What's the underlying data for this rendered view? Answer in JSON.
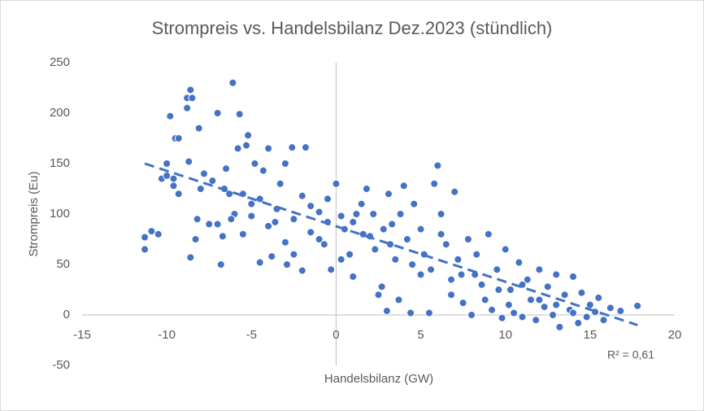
{
  "chart_data": {
    "type": "scatter",
    "title": "Strompreis vs. Handelsbilanz Dez.2023 (stündlich)",
    "x_label": "Handelsbilanz (GW)",
    "y_label": "Strompreis (Eu)",
    "xlim": [
      -15,
      20
    ],
    "xticks": [
      -15,
      -10,
      -5,
      0,
      5,
      10,
      15,
      20
    ],
    "ylim": [
      -50,
      250
    ],
    "yticks": [
      -50,
      0,
      50,
      100,
      150,
      200,
      250
    ],
    "grid": false,
    "series": [
      {
        "color": "#4472c4",
        "x": [
          -11.3,
          -11.3,
          -10.9,
          -10.5,
          -10.3,
          -10,
          -10,
          -9.8,
          -9.6,
          -9.6,
          -9.5,
          -9.3,
          -9.3,
          -8.8,
          -8.8,
          -8.7,
          -8.6,
          -8.5,
          -8.6,
          -8.3,
          -8.2,
          -8.1,
          -8,
          -7.8,
          -7.3,
          -7,
          -7,
          -6.8,
          -6.7,
          -6.5,
          -6.3,
          -6.1,
          -6,
          -5.8,
          -5.7,
          -5.5,
          -5.3,
          -5.2,
          -5,
          -4.8,
          -4.5,
          -4.3,
          -4,
          -3.8,
          -3.6,
          -3.3,
          -3,
          -2.9,
          -2.6,
          -2.5,
          -2,
          -1.8,
          -1.5,
          -1,
          -0.7,
          -0.5,
          -0.3,
          0,
          0.3,
          0.5,
          0.8,
          1,
          1.2,
          1.5,
          1.8,
          2,
          2.3,
          2.5,
          2.7,
          3,
          3.1,
          3.3,
          3.5,
          3.7,
          4,
          4.2,
          4.4,
          4.6,
          5,
          5.2,
          5.5,
          5.8,
          6,
          6.2,
          6.5,
          6.8,
          7,
          7.2,
          7.5,
          7.8,
          8,
          8.3,
          8.6,
          9,
          9.2,
          9.5,
          9.8,
          10,
          10.3,
          10.5,
          10.8,
          11,
          11.3,
          11.5,
          11.8,
          12,
          12.3,
          12.5,
          12.8,
          13,
          13.2,
          13.5,
          13.8,
          14,
          14.3,
          14.5,
          14.8,
          15,
          15.3,
          15.5,
          15.8,
          16.2,
          16.8,
          17.8,
          -7.5,
          -6.6,
          -6.2,
          -5.5,
          -5,
          -4.5,
          -4,
          -3.5,
          -3,
          -2.5,
          -2,
          -1.5,
          -1,
          -0.5,
          0.3,
          1,
          1.6,
          2.2,
          2.8,
          3.2,
          3.8,
          4.5,
          5,
          5.6,
          6.2,
          6.8,
          7.4,
          8.2,
          8.8,
          9.6,
          10.2,
          11,
          12,
          13,
          14
        ],
        "values": [
          65,
          77,
          83,
          80,
          135,
          138,
          150,
          197,
          128,
          135,
          175,
          175,
          120,
          215,
          205,
          152,
          223,
          215,
          57,
          75,
          95,
          185,
          125,
          140,
          133,
          200,
          90,
          50,
          78,
          145,
          120,
          230,
          100,
          165,
          199,
          80,
          168,
          178,
          110,
          150,
          52,
          143,
          165,
          58,
          92,
          130,
          150,
          50,
          166,
          60,
          44,
          166,
          108,
          75,
          70,
          115,
          45,
          130,
          55,
          85,
          60,
          38,
          100,
          110,
          125,
          78,
          65,
          20,
          28,
          4,
          120,
          90,
          55,
          15,
          128,
          75,
          2,
          110,
          40,
          60,
          2,
          130,
          148,
          100,
          70,
          20,
          122,
          55,
          12,
          75,
          0,
          60,
          30,
          80,
          5,
          45,
          -3,
          65,
          25,
          2,
          52,
          -2,
          35,
          15,
          -5,
          45,
          8,
          28,
          0,
          40,
          -12,
          20,
          5,
          38,
          -8,
          22,
          -2,
          10,
          3,
          17,
          -5,
          7,
          4,
          9,
          90,
          125,
          95,
          120,
          98,
          115,
          88,
          105,
          72,
          95,
          118,
          82,
          102,
          92,
          98,
          92,
          80,
          100,
          85,
          70,
          100,
          50,
          85,
          45,
          80,
          35,
          40,
          40,
          15,
          25,
          10,
          30,
          15,
          10,
          2
        ]
      }
    ],
    "trendline": {
      "x": [
        -11.3,
        17.8
      ],
      "values": [
        150,
        -10
      ],
      "label": "R² = 0,61",
      "color": "#4472c4"
    }
  }
}
